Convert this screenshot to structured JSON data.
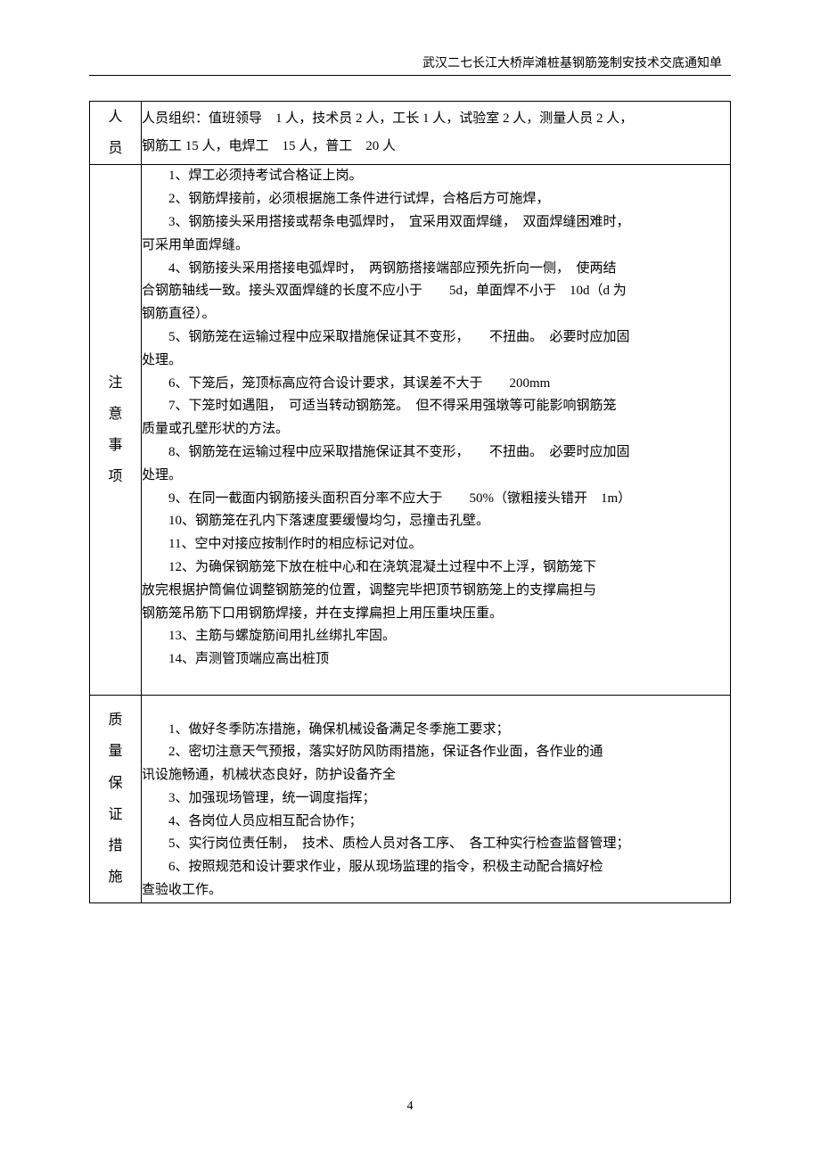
{
  "header": {
    "title": "武汉二七长江大桥岸滩桩基钢筋笼制安技术交底通知单"
  },
  "rows": [
    {
      "label": [
        "人",
        "员"
      ],
      "content_lines": [
        {
          "text": "人员组织：值班领导　1 人，技术员 2 人，工长 1 人，试验室 2 人，测量人员 2 人，",
          "class": "wrap"
        },
        {
          "text": "钢筋工 15 人，电焊工　15 人，普工　20 人",
          "class": "wrap"
        }
      ]
    },
    {
      "label": [
        "注",
        "意",
        "事",
        "项"
      ],
      "content_lines": [
        {
          "text": "1、焊工必须持考试合格证上岗。",
          "class": "indent"
        },
        {
          "text": "2、钢筋焊接前，必须根据施工条件进行试焊，合格后方可施焊，",
          "class": "indent"
        },
        {
          "text": "3、钢筋接头采用搭接或帮条电弧焊时，　宜采用双面焊缝，　双面焊缝困难时，",
          "class": "indent"
        },
        {
          "text": "可采用单面焊缝。",
          "class": "wrap"
        },
        {
          "text": "4、钢筋接头采用搭接电弧焊时，　两钢筋搭接端部应预先折向一侧，　使两结",
          "class": "indent"
        },
        {
          "text": "合钢筋轴线一致。接头双面焊缝的长度不应小于　　5d，单面焊不小于　10d（d 为",
          "class": "wrap"
        },
        {
          "text": "钢筋直径）。",
          "class": "wrap"
        },
        {
          "text": "5、钢筋笼在运输过程中应采取措施保证其不变形，　　不扭曲。　必要时应加固",
          "class": "indent"
        },
        {
          "text": "处理。",
          "class": "wrap"
        },
        {
          "text": "6、下笼后，笼顶标高应符合设计要求，其误差不大于　　200mm",
          "class": "indent"
        },
        {
          "text": "7、下笼时如遇阻，　可适当转动钢筋笼。　但不得采用强墩等可能影响钢筋笼",
          "class": "indent"
        },
        {
          "text": "质量或孔壁形状的方法。",
          "class": "wrap"
        },
        {
          "text": "8、钢筋笼在运输过程中应采取措施保证其不变形，　　不扭曲。　必要时应加固",
          "class": "indent"
        },
        {
          "text": "处理。",
          "class": "wrap"
        },
        {
          "text": "9、在同一截面内钢筋接头面积百分率不应大于　　50%（镦粗接头错开　1m）",
          "class": "indent"
        },
        {
          "text": "10、钢筋笼在孔内下落速度要缓慢均匀，忌撞击孔壁。",
          "class": "indent"
        },
        {
          "text": "11、空中对接应按制作时的相应标记对位。",
          "class": "indent"
        },
        {
          "text": "12、为确保钢筋笼下放在桩中心和在浇筑混凝土过程中不上浮，钢筋笼下",
          "class": "indent"
        },
        {
          "text": "放完根据护筒偏位调整钢筋笼的位置，调整完毕把顶节钢筋笼上的支撑扁担与",
          "class": "wrap"
        },
        {
          "text": "钢筋笼吊筋下口用钢筋焊接，并在支撑扁担上用压重块压重。",
          "class": "wrap"
        },
        {
          "text": "13、主筋与螺旋筋间用扎丝绑扎牢固。",
          "class": "indent"
        },
        {
          "text": "14、声测管顶端应高出桩顶",
          "class": "indent"
        }
      ]
    },
    {
      "label": [
        "质",
        "量",
        "保",
        "证",
        "措",
        "施"
      ],
      "content_lines": [
        {
          "text": "1、做好冬季防冻措施，确保机械设备满足冬季施工要求；",
          "class": "indent"
        },
        {
          "text": "2、密切注意天气预报，落实好防风防雨措施，保证各作业面，各作业的通",
          "class": "indent"
        },
        {
          "text": "讯设施畅通，机械状态良好，防护设备齐全",
          "class": "wrap"
        },
        {
          "text": "3、加强现场管理，统一调度指挥；",
          "class": "indent"
        },
        {
          "text": "4、各岗位人员应相互配合协作；",
          "class": "indent"
        },
        {
          "text": "5、实行岗位责任制，　技术、质检人员对各工序、　各工种实行检查监督管理；",
          "class": "indent"
        },
        {
          "text": "6、按照规范和设计要求作业，服从现场监理的指令，积极主动配合搞好检",
          "class": "indent"
        },
        {
          "text": "查验收工作。",
          "class": "wrap"
        }
      ]
    }
  ],
  "footer": {
    "page_number": "4"
  }
}
